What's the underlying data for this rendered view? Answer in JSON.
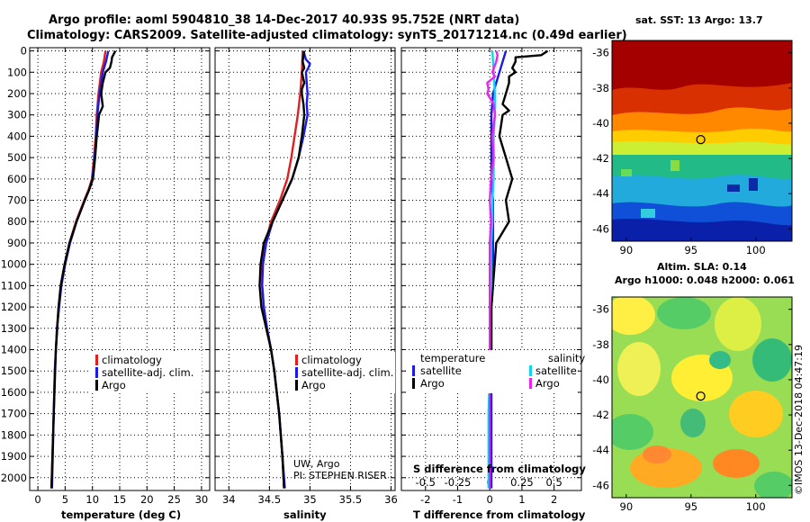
{
  "titles": {
    "line1": "Argo profile: aoml 5904810_38 14-Dec-2017 40.93S 95.752E (NRT data)",
    "line2": "Climatology: CARS2009. Satellite-adjusted climatology: synTS_20171214.nc (0.49d earlier)"
  },
  "colors": {
    "climatology": "#e02020",
    "satellite": "#1a1ae6",
    "argo": "#000000",
    "salinity_satellite": "#11d4ee",
    "salinity_argo": "#ee22ee"
  },
  "depth_ticks": [
    "0",
    "100",
    "200",
    "300",
    "400",
    "500",
    "600",
    "700",
    "800",
    "900",
    "1000",
    "1100",
    "1200",
    "1300",
    "1400",
    "1500",
    "1600",
    "1700",
    "1800",
    "1900",
    "2000"
  ],
  "legend": {
    "climatology": "climatology",
    "satellite": "satellite-adj. clim.",
    "argo": "Argo",
    "diff_temperature": "temperature",
    "diff_salinity": "salinity",
    "diff_satellite": "satellite",
    "diff_argo": "Argo"
  },
  "credits": {
    "line1": "UW, Argo",
    "line2": "PI: STEPHEN RISER"
  },
  "side": {
    "sst_title": "sat. SST: 13 Argo: 13.7",
    "sla_title1": "Altim. SLA: 0.14",
    "sla_title2": "Argo h1000: 0.048 h2000: 0.061",
    "stamp": "©IMOS 13-Dec-2018 04:47:19"
  },
  "chart_data": [
    {
      "type": "line",
      "name": "temperature",
      "xlabel": "temperature (deg C)",
      "xticks": [
        0,
        5,
        10,
        15,
        20,
        25,
        30
      ],
      "xlim": [
        -1.5,
        31.5
      ],
      "ylim": [
        2060,
        -15
      ],
      "grid": true,
      "series": [
        {
          "name": "climatology",
          "depth": [
            0,
            50,
            100,
            200,
            300,
            400,
            500,
            600,
            650,
            700,
            800,
            900,
            1000,
            1100,
            1200,
            1300,
            1400,
            1500,
            1700,
            2050
          ],
          "values": [
            12.4,
            12.1,
            11.6,
            11.1,
            10.8,
            10.6,
            10.3,
            9.9,
            9.3,
            8.5,
            7.0,
            5.8,
            4.9,
            4.2,
            3.8,
            3.5,
            3.3,
            3.1,
            2.9,
            2.5
          ]
        },
        {
          "name": "satellite-adj. clim.",
          "depth": [
            0,
            50,
            100,
            200,
            300,
            400,
            500,
            600,
            650,
            700,
            800,
            900,
            1000,
            1100,
            1200,
            1300,
            1400,
            1500,
            1700,
            2050
          ],
          "values": [
            12.9,
            12.5,
            11.9,
            11.3,
            10.9,
            10.7,
            10.4,
            10.0,
            9.4,
            8.6,
            7.1,
            5.9,
            5.0,
            4.3,
            3.9,
            3.5,
            3.3,
            3.1,
            2.9,
            2.6
          ]
        },
        {
          "name": "Argo",
          "depth": [
            0,
            30,
            50,
            80,
            100,
            150,
            200,
            260,
            300,
            350,
            400,
            500,
            600,
            650,
            700,
            800,
            900,
            1000,
            1100,
            1200,
            1400,
            1700,
            2050
          ],
          "values": [
            14.2,
            13.6,
            13.5,
            13.2,
            12.4,
            11.9,
            11.6,
            11.9,
            11.2,
            11.0,
            10.8,
            10.5,
            10.1,
            9.4,
            8.6,
            7.1,
            5.8,
            4.9,
            4.2,
            3.8,
            3.3,
            2.9,
            2.5
          ]
        }
      ]
    },
    {
      "type": "line",
      "name": "salinity",
      "xlabel": "salinity",
      "xticks": [
        34,
        34.5,
        35,
        35.5,
        36
      ],
      "xticklabels": [
        "34",
        "34.5",
        "35",
        "35.5",
        "36"
      ],
      "xlim": [
        33.83,
        36.05
      ],
      "ylim": [
        2060,
        -15
      ],
      "grid": true,
      "series": [
        {
          "name": "climatology",
          "depth": [
            0,
            100,
            200,
            300,
            400,
            500,
            600,
            700,
            800,
            900,
            1000,
            1100,
            1200,
            1300,
            1400,
            1500,
            1600,
            1700,
            1800,
            1900,
            2050
          ],
          "values": [
            34.91,
            34.9,
            34.88,
            34.85,
            34.81,
            34.77,
            34.72,
            34.63,
            34.52,
            34.45,
            34.41,
            34.41,
            34.43,
            34.47,
            34.52,
            34.56,
            34.59,
            34.62,
            34.64,
            34.66,
            34.68
          ]
        },
        {
          "name": "satellite-adj. clim.",
          "depth": [
            0,
            40,
            60,
            80,
            100,
            150,
            200,
            250,
            300,
            400,
            500,
            600,
            700,
            800,
            900,
            1000,
            1100,
            1200,
            1300,
            1400,
            1500,
            1600,
            1700,
            1800,
            1900,
            2050
          ],
          "values": [
            34.92,
            34.95,
            35.0,
            34.98,
            34.95,
            34.96,
            34.97,
            34.96,
            34.97,
            34.92,
            34.86,
            34.78,
            34.66,
            34.54,
            34.46,
            34.42,
            34.41,
            34.43,
            34.47,
            34.52,
            34.56,
            34.59,
            34.62,
            34.64,
            34.66,
            34.69
          ]
        },
        {
          "name": "Argo",
          "depth": [
            0,
            20,
            50,
            80,
            100,
            150,
            180,
            200,
            250,
            300,
            400,
            500,
            600,
            700,
            800,
            900,
            1000,
            1100,
            1200,
            1300,
            1400,
            1500,
            1600,
            1700,
            1800,
            1900,
            2050
          ],
          "values": [
            34.93,
            34.92,
            34.91,
            34.93,
            34.9,
            34.93,
            34.9,
            34.9,
            34.92,
            34.93,
            34.9,
            34.86,
            34.78,
            34.66,
            34.54,
            34.43,
            34.39,
            34.38,
            34.4,
            34.46,
            34.52,
            34.56,
            34.59,
            34.62,
            34.64,
            34.66,
            34.68
          ]
        }
      ]
    },
    {
      "type": "line",
      "name": "difference",
      "xlabel": "T difference from climatology",
      "xlabel_top": "S difference from climatology",
      "xticks": [
        -2,
        -1,
        0,
        1,
        2
      ],
      "xlim": [
        -2.75,
        2.85
      ],
      "xticks_top": [
        -0.5,
        -0.25,
        0,
        0.25,
        0.5
      ],
      "xlim_top": [
        -0.6875,
        0.7125
      ],
      "ylim": [
        2060,
        -15
      ],
      "grid": true,
      "series": [
        {
          "name": "temperature satellite",
          "axis": "T",
          "depth": [
            0,
            100,
            200,
            300,
            400,
            500,
            600,
            700,
            800,
            900,
            1000,
            1100,
            1200,
            1400,
            1600,
            2050
          ],
          "values": [
            0.5,
            0.3,
            0.1,
            0.05,
            0.05,
            0.05,
            0.05,
            0.1,
            0.1,
            0.1,
            0.1,
            0.1,
            0.05,
            0.05,
            0.05,
            0.05
          ]
        },
        {
          "name": "temperature Argo",
          "axis": "T",
          "depth": [
            0,
            20,
            30,
            50,
            80,
            100,
            120,
            150,
            200,
            250,
            280,
            300,
            400,
            500,
            600,
            700,
            800,
            850,
            900,
            1000,
            1100,
            1200,
            1400,
            1600,
            2050
          ],
          "values": [
            1.8,
            1.6,
            0.8,
            0.8,
            0.7,
            0.8,
            0.6,
            0.6,
            0.5,
            0.4,
            0.6,
            0.4,
            0.3,
            0.5,
            0.7,
            0.5,
            0.6,
            0.4,
            0.2,
            0.15,
            0.1,
            0.05,
            0.05,
            0.02,
            0.0
          ]
        },
        {
          "name": "salinity satellite",
          "axis": "S",
          "depth": [
            0,
            100,
            200,
            300,
            400,
            500,
            600,
            700,
            800,
            900,
            1000,
            1100,
            1200,
            1500,
            1700,
            2050
          ],
          "values": [
            0.02,
            0.03,
            0.04,
            0.04,
            0.03,
            0.03,
            0.03,
            0.02,
            0.02,
            0.01,
            0.01,
            0.01,
            0.0,
            0.0,
            -0.01,
            -0.01
          ]
        },
        {
          "name": "salinity Argo",
          "axis": "S",
          "depth": [
            0,
            20,
            50,
            100,
            120,
            150,
            180,
            200,
            250,
            300,
            400,
            500,
            600,
            700,
            800,
            900,
            1000,
            1100,
            1200,
            1500,
            1700,
            2050
          ],
          "values": [
            0.05,
            0.06,
            0.05,
            0.02,
            0.04,
            -0.02,
            -0.01,
            -0.02,
            0.03,
            0.04,
            0.02,
            0.03,
            0.01,
            0.0,
            0.01,
            0.0,
            0.0,
            0.0,
            0.0,
            0.0,
            0.0,
            0.0
          ]
        }
      ]
    },
    {
      "type": "heatmap",
      "name": "sst-map",
      "title": "sat. SST: 13 Argo: 13.7",
      "xticks": [
        90,
        95,
        100
      ],
      "yticks": [
        -36,
        -38,
        -40,
        -42,
        -44,
        -46
      ],
      "xlim": [
        88.9,
        102.8
      ],
      "ylim": [
        -35.3,
        -46.7
      ],
      "marker": {
        "lon": 95.752,
        "lat": -40.93
      }
    },
    {
      "type": "heatmap",
      "name": "sla-map",
      "title": "Altim. SLA: 0.14",
      "xticks": [
        90,
        95,
        100
      ],
      "yticks": [
        -36,
        -38,
        -40,
        -42,
        -44,
        -46
      ],
      "xlim": [
        88.9,
        102.8
      ],
      "ylim": [
        -35.3,
        -46.7
      ],
      "marker": {
        "lon": 95.752,
        "lat": -40.93
      }
    }
  ]
}
